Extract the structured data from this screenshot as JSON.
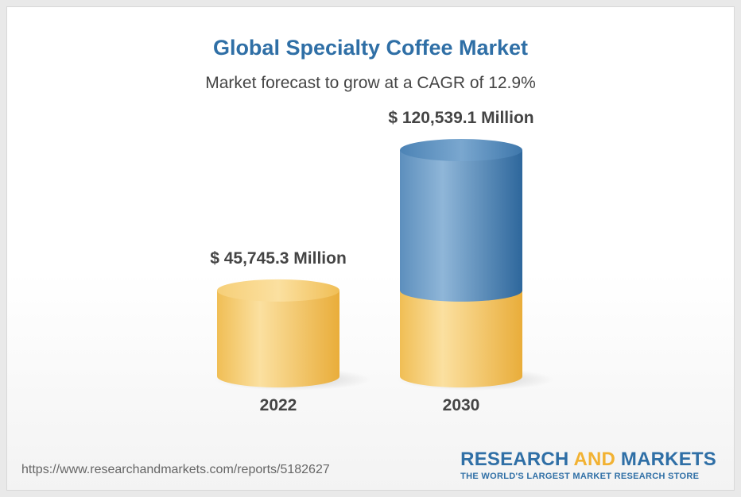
{
  "title": "Global Specialty Coffee Market",
  "subtitle": "Market forecast to grow at a CAGR of 12.9%",
  "source_url": "https://www.researchandmarkets.com/reports/5182627",
  "brand": {
    "word1": "RESEARCH",
    "word2": "AND",
    "word3": "MARKETS",
    "tagline": "THE WORLD'S LARGEST MARKET RESEARCH STORE"
  },
  "colors": {
    "base": "#f2c25c",
    "growth": "#3f78ad",
    "title": "#2f6fa6",
    "brand_and": "#f2b233"
  },
  "chart_data": {
    "type": "bar",
    "categories": [
      "2022",
      "2030"
    ],
    "values": [
      45745.3,
      120539.1
    ],
    "value_labels": [
      "$ 45,745.3 Million",
      "$ 120,539.1 Million"
    ],
    "unit": "USD Million",
    "title": "Global Specialty Coffee Market",
    "subtitle": "Market forecast to grow at a CAGR of 12.9%",
    "cagr_percent": 12.9
  }
}
